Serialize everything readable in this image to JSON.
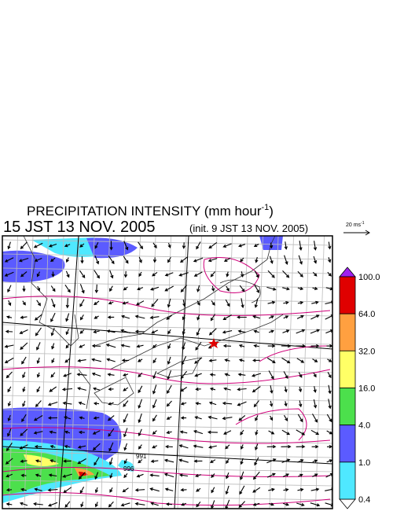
{
  "header": {
    "title": "PRECIPITATION INTENSITY (mm hour",
    "title_exponent": "-1",
    "title_close": ")",
    "valid_time": "15 JST 13 NOV. 2005",
    "init_time": "(init. 9 JST 13 NOV. 2005)"
  },
  "vector_scale": {
    "label": "20 ms",
    "exponent": "-1"
  },
  "colorbar": {
    "labels": [
      "100.0",
      "64.0",
      "32.0",
      "16.0",
      "4.0",
      "1.0",
      "0.4"
    ]
  },
  "map": {
    "contour_labels": [
      "991",
      "996"
    ]
  }
}
